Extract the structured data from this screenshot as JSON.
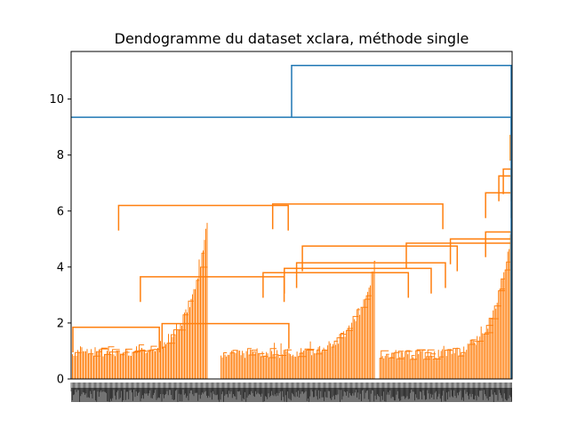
{
  "chart_data": {
    "type": "dendrogram",
    "title": "Dendogramme du dataset xclara, méthode single",
    "xlabel": "",
    "ylabel": "",
    "ylim": [
      0,
      11.7
    ],
    "yticks": [
      0,
      2,
      4,
      6,
      8,
      10
    ],
    "grid": false,
    "legend": "none",
    "leaf_labels": "dense, unreadable (overlapping) leaf index labels",
    "colors": {
      "cluster": "#ff7f0e",
      "above_threshold": "#1f77b4"
    },
    "top_links": [
      {
        "height": 11.2,
        "joins": [
          "merge at 9.35",
          "outlier branch (right)"
        ]
      },
      {
        "height": 9.35,
        "joins": [
          "orange cluster (all leaves)",
          "single leaf"
        ]
      }
    ],
    "major_merges": [
      {
        "height": 8.7,
        "x": 0.998
      },
      {
        "height": 7.5,
        "x": 0.99
      },
      {
        "height": 7.25,
        "x": 0.985
      },
      {
        "height": 6.65,
        "x": 0.97
      },
      {
        "height": 6.25,
        "x": 0.65
      },
      {
        "height": 6.2,
        "x": 0.3
      },
      {
        "height": 5.25,
        "x": 0.97
      },
      {
        "height": 5.0,
        "x": 0.93
      },
      {
        "height": 4.85,
        "x": 0.88
      },
      {
        "height": 4.75,
        "x": 0.7
      },
      {
        "height": 4.15,
        "x": 0.68
      },
      {
        "height": 3.95,
        "x": 0.65
      },
      {
        "height": 3.8,
        "x": 0.6
      },
      {
        "height": 3.65,
        "x": 0.32
      },
      {
        "height": 1.98,
        "x": 0.35
      },
      {
        "height": 1.85,
        "x": 0.1
      }
    ],
    "sub_clusters": [
      {
        "range": [
          0.0,
          0.31
        ],
        "peak": 5.5,
        "floor": 0.8
      },
      {
        "range": [
          0.34,
          0.69
        ],
        "peak": 4.0,
        "floor": 0.75
      },
      {
        "range": [
          0.7,
          0.998
        ],
        "peak": 5.0,
        "floor": 0.7
      }
    ]
  }
}
